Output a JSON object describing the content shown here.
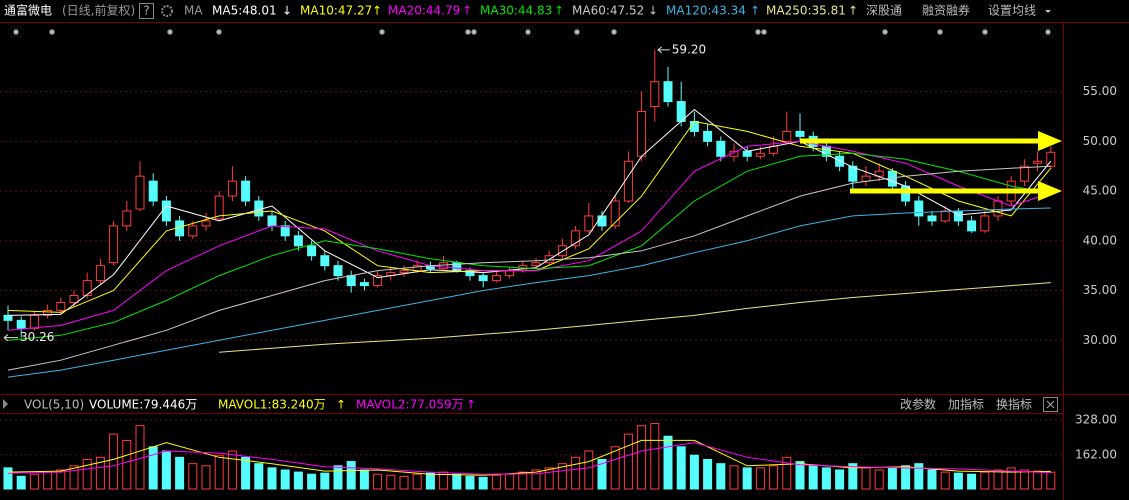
{
  "toolbar": {
    "help": "?",
    "buttons": [
      "深股通",
      "融资融券",
      "设置均线"
    ],
    "volume_buttons": [
      "改参数",
      "加指标",
      "换指标"
    ]
  },
  "chart_data": [
    {
      "type": "candlestick",
      "title": "通富微电",
      "subtitle": "(日线,前复权)",
      "indicator_label": "MA",
      "up_color": "#ff3b3b",
      "down_color": "#54fcfc",
      "ylim": [
        25,
        62
      ],
      "yticks": [
        {
          "value": 30,
          "label": "30.00"
        },
        {
          "value": 35,
          "label": "35.00"
        },
        {
          "value": 40,
          "label": "40.00"
        },
        {
          "value": 45,
          "label": "45.00"
        },
        {
          "value": 50,
          "label": "50.00"
        },
        {
          "value": 55,
          "label": "55.00"
        }
      ],
      "grid": true,
      "high_label": "59.20",
      "low_label": "30.26",
      "candles": [
        [
          32.5,
          33.5,
          31.0,
          32.0
        ],
        [
          32.0,
          32.4,
          30.26,
          31.2
        ],
        [
          31.2,
          32.9,
          31.0,
          32.5
        ],
        [
          32.5,
          33.6,
          32.2,
          33.0
        ],
        [
          33.0,
          34.3,
          32.6,
          33.8
        ],
        [
          33.8,
          35.0,
          33.4,
          34.5
        ],
        [
          34.5,
          36.8,
          34.2,
          36.0
        ],
        [
          36.0,
          38.2,
          35.6,
          37.5
        ],
        [
          37.8,
          42.0,
          37.5,
          41.5
        ],
        [
          41.5,
          44.0,
          41.0,
          43.0
        ],
        [
          43.2,
          48.0,
          43.0,
          46.5
        ],
        [
          46.0,
          46.8,
          43.5,
          44.0
        ],
        [
          44.0,
          44.5,
          41.5,
          42.0
        ],
        [
          42.0,
          42.5,
          40.0,
          40.5
        ],
        [
          40.5,
          42.0,
          40.2,
          41.5
        ],
        [
          41.5,
          42.8,
          41.0,
          42.0
        ],
        [
          42.2,
          45.0,
          42.0,
          44.5
        ],
        [
          44.5,
          47.5,
          44.0,
          46.0
        ],
        [
          46.0,
          46.5,
          43.5,
          44.0
        ],
        [
          44.0,
          44.5,
          42.0,
          42.5
        ],
        [
          42.5,
          43.0,
          41.0,
          41.5
        ],
        [
          41.5,
          42.0,
          40.0,
          40.5
        ],
        [
          40.5,
          41.0,
          39.0,
          39.5
        ],
        [
          39.5,
          40.0,
          38.0,
          38.5
        ],
        [
          38.5,
          39.0,
          37.0,
          37.5
        ],
        [
          37.5,
          38.0,
          36.0,
          36.5
        ],
        [
          36.5,
          37.0,
          34.8,
          35.5
        ],
        [
          35.8,
          36.2,
          35.0,
          35.5
        ],
        [
          35.5,
          37.0,
          35.3,
          36.5
        ],
        [
          36.5,
          37.3,
          36.0,
          36.8
        ],
        [
          36.8,
          37.5,
          36.4,
          37.0
        ],
        [
          37.0,
          38.0,
          36.8,
          37.5
        ],
        [
          37.5,
          37.9,
          36.8,
          37.2
        ],
        [
          37.2,
          38.5,
          37.0,
          37.8
        ],
        [
          37.8,
          38.0,
          36.8,
          37.0
        ],
        [
          37.0,
          37.3,
          36.0,
          36.5
        ],
        [
          36.5,
          36.8,
          35.3,
          36.0
        ],
        [
          36.0,
          37.0,
          35.8,
          36.5
        ],
        [
          36.5,
          37.4,
          36.2,
          37.0
        ],
        [
          37.0,
          38.0,
          36.8,
          37.5
        ],
        [
          37.5,
          38.3,
          37.2,
          37.8
        ],
        [
          37.8,
          39.0,
          37.5,
          38.5
        ],
        [
          38.5,
          40.2,
          38.2,
          39.5
        ],
        [
          39.5,
          41.5,
          39.2,
          41.0
        ],
        [
          41.0,
          43.8,
          40.8,
          42.5
        ],
        [
          42.5,
          43.0,
          41.0,
          41.5
        ],
        [
          41.5,
          44.5,
          41.2,
          44.0
        ],
        [
          44.0,
          49.0,
          43.8,
          48.0
        ],
        [
          48.5,
          55.0,
          48.0,
          53.0
        ],
        [
          53.5,
          59.2,
          52.0,
          56.0
        ],
        [
          56.0,
          57.5,
          53.5,
          54.0
        ],
        [
          54.0,
          56.0,
          51.5,
          52.0
        ],
        [
          52.0,
          53.0,
          50.5,
          51.0
        ],
        [
          51.0,
          51.8,
          49.5,
          50.0
        ],
        [
          50.0,
          50.5,
          48.0,
          48.5
        ],
        [
          48.5,
          49.8,
          48.0,
          49.0
        ],
        [
          49.0,
          49.5,
          48.0,
          48.5
        ],
        [
          48.5,
          49.5,
          48.2,
          48.8
        ],
        [
          48.8,
          50.5,
          48.5,
          49.5
        ],
        [
          50.0,
          53.0,
          49.8,
          51.0
        ],
        [
          51.0,
          52.8,
          50.0,
          50.5
        ],
        [
          50.5,
          51.0,
          49.0,
          49.5
        ],
        [
          49.5,
          50.0,
          48.0,
          48.5
        ],
        [
          48.5,
          49.0,
          47.0,
          47.5
        ],
        [
          47.5,
          48.0,
          44.8,
          46.0
        ],
        [
          46.0,
          47.5,
          45.5,
          46.5
        ],
        [
          46.5,
          47.8,
          46.0,
          47.0
        ],
        [
          47.0,
          47.3,
          45.0,
          45.5
        ],
        [
          45.5,
          46.0,
          43.5,
          44.0
        ],
        [
          44.0,
          44.5,
          41.5,
          42.5
        ],
        [
          42.5,
          43.0,
          41.5,
          42.0
        ],
        [
          42.0,
          43.5,
          41.8,
          43.0
        ],
        [
          43.0,
          43.3,
          41.5,
          42.0
        ],
        [
          42.0,
          42.5,
          40.8,
          41.0
        ],
        [
          41.0,
          43.0,
          40.8,
          42.5
        ],
        [
          42.5,
          44.5,
          42.0,
          44.0
        ],
        [
          44.0,
          46.5,
          43.5,
          46.0
        ],
        [
          46.0,
          48.2,
          45.5,
          47.5
        ],
        [
          47.8,
          49.0,
          47.0,
          48.0
        ],
        [
          47.5,
          49.5,
          47.2,
          48.9
        ]
      ],
      "ma_x": [
        0,
        4,
        8,
        12,
        16,
        20,
        24,
        28,
        32,
        36,
        40,
        44,
        48,
        52,
        56,
        60,
        64,
        68,
        72,
        76,
        79
      ],
      "series": [
        {
          "label": "MA5:48.01",
          "arrow": "↓",
          "color": "#ffffff",
          "values": [
            32.5,
            32.6,
            36.6,
            43.5,
            42.0,
            43.5,
            39.0,
            36.3,
            37.1,
            36.8,
            37.3,
            40.6,
            48.5,
            53.2,
            49.0,
            50.0,
            47.4,
            45.5,
            42.6,
            43.1,
            48.0
          ]
        },
        {
          "label": "MA10:47.27",
          "arrow": "↑",
          "color": "#ffff00",
          "values": [
            33,
            32.8,
            35,
            41,
            42.5,
            43,
            41,
            37.5,
            36.8,
            37,
            37,
            39.2,
            44.5,
            52,
            51,
            49.5,
            48.8,
            46.5,
            44,
            42.5,
            47.3
          ]
        },
        {
          "label": "MA20:44.79",
          "arrow": "↑",
          "color": "#ff00ff",
          "values": [
            31,
            31.5,
            33,
            37,
            39.5,
            41.5,
            41.2,
            39,
            37.5,
            37,
            37,
            38,
            41,
            47,
            49.5,
            50,
            49,
            47.8,
            45.5,
            43.5,
            44.8
          ]
        },
        {
          "label": "MA30:44.83",
          "arrow": "↑",
          "color": "#00e600",
          "values": [
            30,
            30.5,
            31.8,
            34,
            36.5,
            38.5,
            40,
            39.2,
            38.2,
            37.5,
            37.2,
            37.5,
            39.5,
            44,
            47,
            48.5,
            48.8,
            48.2,
            47,
            45.5,
            44.8
          ]
        },
        {
          "label": "MA60:47.52",
          "arrow": "↓",
          "color": "#c8c8c8",
          "values": [
            27,
            28,
            29.5,
            31,
            33,
            34.5,
            36,
            37,
            37.5,
            37.8,
            38,
            38.3,
            39,
            40.5,
            42.5,
            44.5,
            45.8,
            46.5,
            47,
            47.3,
            47.5
          ]
        },
        {
          "label": "MA120:43.34",
          "arrow": "↑",
          "color": "#3cb4e6",
          "values": [
            26.3,
            27,
            28,
            29,
            30,
            31,
            32,
            33,
            34,
            35,
            35.8,
            36.5,
            37.5,
            38.8,
            40,
            41.5,
            42.5,
            42.8,
            43,
            43.2,
            43.3
          ]
        },
        {
          "label": "MA250:35.81",
          "arrow": "↑",
          "color": "#e6e68c",
          "values": [
            null,
            null,
            null,
            null,
            28.8,
            29.2,
            29.6,
            29.9,
            30.2,
            30.6,
            31.0,
            31.5,
            32.0,
            32.5,
            33.2,
            33.8,
            34.3,
            34.7,
            35.1,
            35.5,
            35.8
          ]
        }
      ]
    },
    {
      "type": "bar",
      "title": "VOL(5,10)",
      "current_label": "VOLUME:79.446万",
      "ylim": [
        0,
        360
      ],
      "yticks": [
        {
          "value": 162,
          "label": "162.00"
        },
        {
          "value": 328,
          "label": "328.00"
        }
      ],
      "values": [
        100,
        60,
        70,
        80,
        90,
        110,
        140,
        150,
        260,
        230,
        300,
        200,
        180,
        150,
        120,
        110,
        160,
        180,
        150,
        120,
        100,
        90,
        80,
        70,
        75,
        110,
        130,
        90,
        70,
        65,
        60,
        70,
        75,
        80,
        70,
        60,
        55,
        65,
        70,
        80,
        90,
        100,
        120,
        150,
        180,
        140,
        200,
        260,
        300,
        310,
        250,
        200,
        160,
        140,
        120,
        110,
        100,
        100,
        110,
        150,
        130,
        110,
        100,
        90,
        120,
        100,
        90,
        100,
        110,
        120,
        90,
        80,
        75,
        70,
        80,
        90,
        100,
        90,
        85,
        79.446
      ],
      "ma_x": [
        0,
        4,
        8,
        12,
        16,
        20,
        24,
        28,
        32,
        36,
        40,
        44,
        48,
        52,
        56,
        60,
        64,
        68,
        72,
        76,
        79
      ],
      "series": [
        {
          "label": "MAVOL1:83.240万",
          "arrow": "↑",
          "color": "#ffff00",
          "values": [
            80,
            85,
            140,
            220,
            150,
            120,
            85,
            90,
            70,
            65,
            80,
            130,
            230,
            230,
            110,
            120,
            100,
            105,
            85,
            80,
            83.24
          ]
        },
        {
          "label": "MAVOL2:77.059万",
          "arrow": "↑",
          "color": "#ff00ff",
          "values": [
            75,
            80,
            110,
            180,
            170,
            140,
            105,
            95,
            80,
            70,
            72,
            100,
            180,
            220,
            150,
            115,
            105,
            100,
            95,
            85,
            77.059
          ]
        }
      ]
    }
  ]
}
